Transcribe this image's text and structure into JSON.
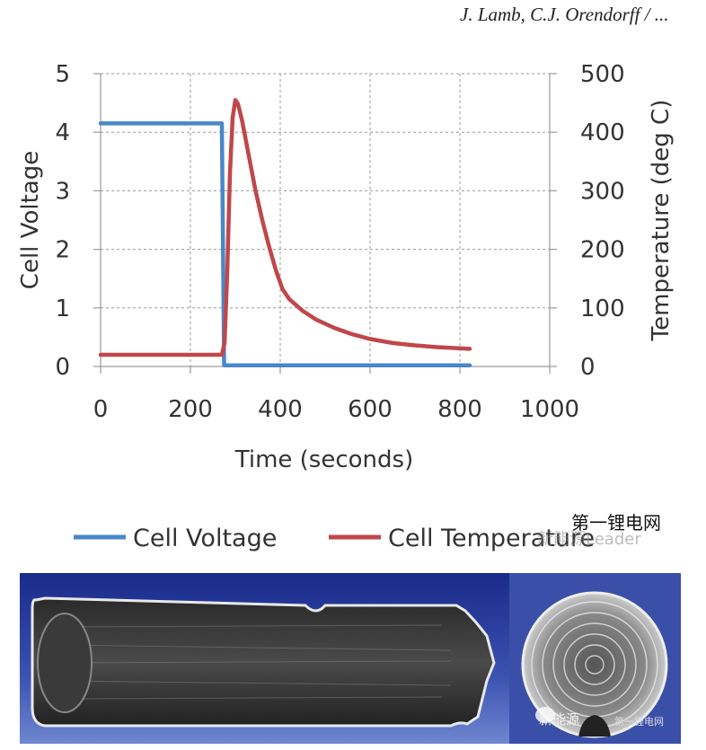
{
  "credit": "J. Lamb, C.J. Orendorff / ...",
  "watermarks": {
    "line1": "第一锂电网",
    "line2": "新能源Leader",
    "line3": "新能源",
    "line4": "第一锂电网"
  },
  "chart_data": {
    "type": "line",
    "title": "",
    "xlabel": "Time (seconds)",
    "ylabel": "Cell Voltage",
    "y2label": "Temperature (deg C)",
    "xlim": [
      0,
      1000
    ],
    "ylim": [
      0,
      5
    ],
    "y2lim": [
      0,
      500
    ],
    "xticks": [
      0,
      200,
      400,
      600,
      800,
      1000
    ],
    "yticks": [
      0,
      1,
      2,
      3,
      4,
      5
    ],
    "y2ticks": [
      0,
      100,
      200,
      300,
      400,
      500
    ],
    "grid": true,
    "legend_position": "bottom",
    "series": [
      {
        "name": "Cell Voltage",
        "axis": "left",
        "color": "#4a86c8",
        "points": [
          [
            0,
            4.15
          ],
          [
            270,
            4.15
          ],
          [
            272,
            2.5
          ],
          [
            275,
            0.02
          ],
          [
            822,
            0.02
          ]
        ]
      },
      {
        "name": "Cell Temperature",
        "axis": "right",
        "color": "#c0474a",
        "points": [
          [
            0,
            20
          ],
          [
            270,
            20
          ],
          [
            276,
            40
          ],
          [
            282,
            160
          ],
          [
            288,
            330
          ],
          [
            294,
            425
          ],
          [
            300,
            455
          ],
          [
            306,
            448
          ],
          [
            315,
            420
          ],
          [
            330,
            360
          ],
          [
            345,
            300
          ],
          [
            360,
            250
          ],
          [
            375,
            205
          ],
          [
            390,
            165
          ],
          [
            405,
            132
          ],
          [
            420,
            115
          ],
          [
            450,
            95
          ],
          [
            480,
            80
          ],
          [
            520,
            66
          ],
          [
            560,
            55
          ],
          [
            600,
            47
          ],
          [
            650,
            40
          ],
          [
            700,
            36
          ],
          [
            750,
            33
          ],
          [
            800,
            31
          ],
          [
            822,
            30
          ]
        ]
      }
    ]
  }
}
